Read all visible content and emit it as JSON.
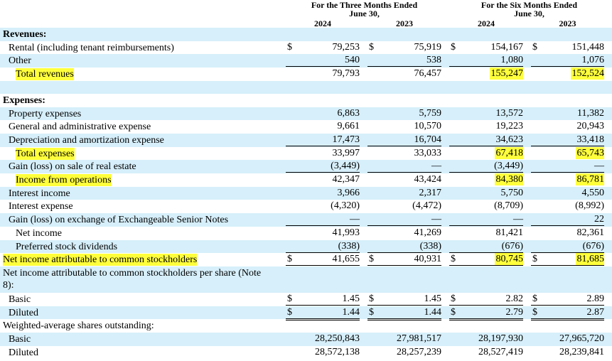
{
  "header": {
    "groups": [
      {
        "title": "For the Three Months Ended",
        "subtitle": "June 30,"
      },
      {
        "title": "For the Six Months Ended",
        "subtitle": "June 30,"
      }
    ],
    "years": [
      "2024",
      "2023",
      "2024",
      "2023"
    ]
  },
  "table": {
    "rows": [
      {
        "label": "Revenues:",
        "level": 0,
        "bold": true
      },
      {
        "label": "Rental (including tenant reimbursements)",
        "level": 1,
        "symbols": [
          "$",
          "$",
          "$",
          "$"
        ],
        "values": [
          "79,253",
          "75,919",
          "154,167",
          "151,448"
        ]
      },
      {
        "label": "Other",
        "level": 1,
        "values": [
          "540",
          "538",
          "1,080",
          "1,076"
        ],
        "rule": "single"
      },
      {
        "label": "Total revenues",
        "level": 2,
        "highlighted": true,
        "values": [
          "79,793",
          "76,457",
          "155,247",
          "152,524"
        ],
        "highlighted_columns": [
          2,
          3
        ]
      },
      {
        "label": "Expenses:",
        "level": 0,
        "bold": true
      },
      {
        "label": "Property expenses",
        "level": 1,
        "values": [
          "6,863",
          "5,759",
          "13,572",
          "11,382"
        ]
      },
      {
        "label": "General and administrative expense",
        "level": 1,
        "values": [
          "9,661",
          "10,570",
          "19,223",
          "20,943"
        ]
      },
      {
        "label": "Depreciation and amortization expense",
        "level": 1,
        "values": [
          "17,473",
          "16,704",
          "34,623",
          "33,418"
        ],
        "rule": "single"
      },
      {
        "label": "Total expenses",
        "level": 2,
        "highlighted": true,
        "values": [
          "33,997",
          "33,033",
          "67,418",
          "65,743"
        ],
        "highlighted_columns": [
          2,
          3
        ]
      },
      {
        "label": "Gain (loss) on sale of real estate",
        "level": 1,
        "values": [
          "(3,449)",
          "—",
          "(3,449)",
          "—"
        ],
        "rule": "single"
      },
      {
        "label": "Income from operations",
        "level": 2,
        "highlighted": true,
        "values": [
          "42,347",
          "43,424",
          "84,380",
          "86,781"
        ],
        "highlighted_columns": [
          2,
          3
        ]
      },
      {
        "label": "Interest income",
        "level": 1,
        "values": [
          "3,966",
          "2,317",
          "5,750",
          "4,550"
        ]
      },
      {
        "label": "Interest expense",
        "level": 1,
        "values": [
          "(4,320)",
          "(4,472)",
          "(8,709)",
          "(8,992)"
        ]
      },
      {
        "label": "Gain (loss) on exchange of Exchangeable Senior Notes",
        "level": 1,
        "values": [
          "—",
          "—",
          "—",
          "22"
        ],
        "rule": "single"
      },
      {
        "label": "Net income",
        "level": 2,
        "values": [
          "41,993",
          "41,269",
          "81,421",
          "82,361"
        ]
      },
      {
        "label": "Preferred stock dividends",
        "level": 2,
        "values": [
          "(338)",
          "(338)",
          "(676)",
          "(676)"
        ],
        "rule": "single"
      },
      {
        "label": "Net income attributable to common stockholders",
        "level": 0,
        "highlighted": true,
        "symbols": [
          "$",
          "$",
          "$",
          "$"
        ],
        "values": [
          "41,655",
          "40,931",
          "80,745",
          "81,685"
        ],
        "highlighted_columns": [
          2,
          3
        ],
        "rule": "double"
      },
      {
        "label": "Net income attributable to common stockholders per share (Note 8):",
        "level": 0
      },
      {
        "label": "Basic",
        "level": 1,
        "symbols": [
          "$",
          "$",
          "$",
          "$"
        ],
        "values": [
          "1.45",
          "1.45",
          "2.82",
          "2.89"
        ],
        "rule": "single"
      },
      {
        "label": "Diluted",
        "level": 1,
        "symbols": [
          "$",
          "$",
          "$",
          "$"
        ],
        "values": [
          "1.44",
          "1.44",
          "2.79",
          "2.87"
        ],
        "rule": "double"
      },
      {
        "label": "Weighted-average shares outstanding:",
        "level": 0
      },
      {
        "label": "Basic",
        "level": 1,
        "values": [
          "28,250,843",
          "27,981,517",
          "28,197,930",
          "27,965,720"
        ]
      },
      {
        "label": "Diluted",
        "level": 1,
        "values": [
          "28,572,138",
          "28,257,239",
          "28,527,419",
          "28,239,841"
        ]
      }
    ]
  }
}
